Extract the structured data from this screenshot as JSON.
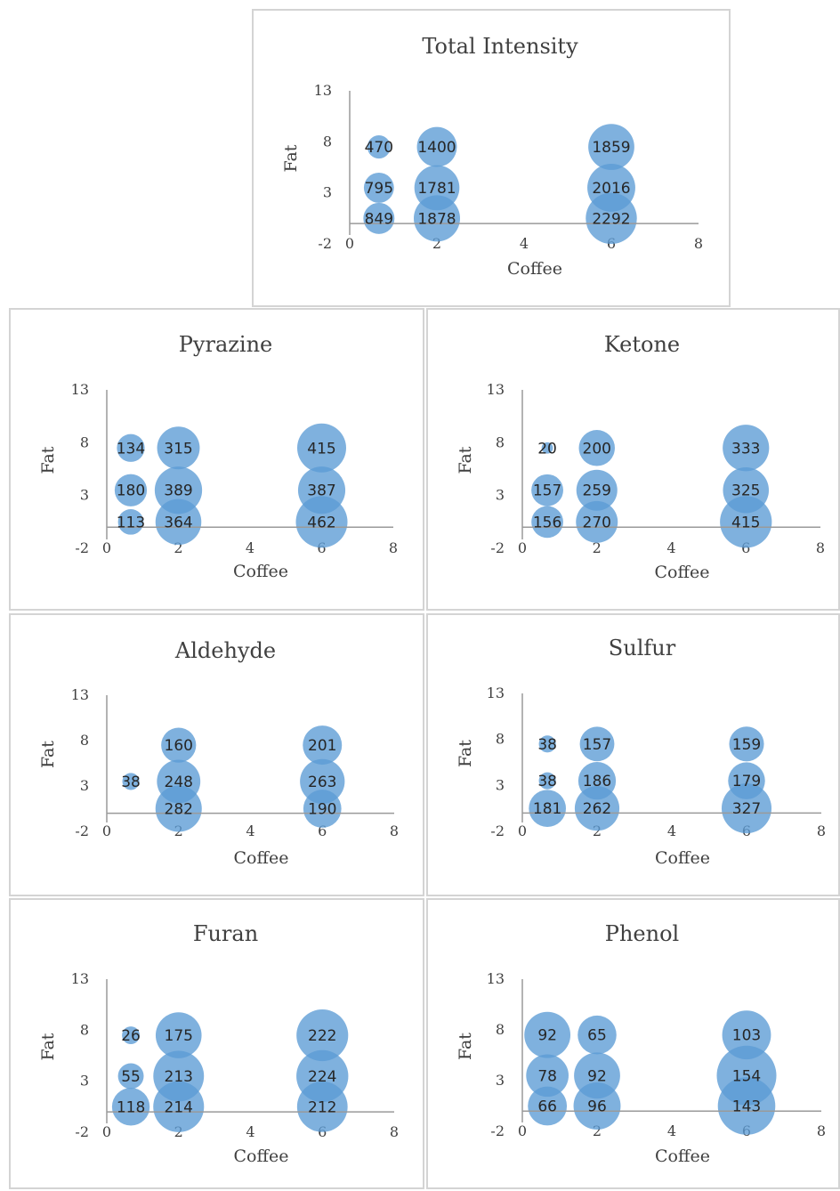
{
  "chart_data": [
    {
      "type": "bubble",
      "title": "Total Intensity",
      "xlabel": "Coffee",
      "ylabel": "Fat",
      "xlim": [
        0,
        8
      ],
      "ylim": [
        -2,
        13
      ],
      "xticks": [
        0,
        2,
        4,
        6,
        8
      ],
      "yticks": [
        -2,
        3,
        8,
        13
      ],
      "color": "#5b9bd5",
      "points": [
        {
          "x": 0.67,
          "y": 7.5,
          "value": 470
        },
        {
          "x": 0.67,
          "y": 3.5,
          "value": 795
        },
        {
          "x": 0.67,
          "y": 0.5,
          "value": 849
        },
        {
          "x": 2,
          "y": 7.5,
          "value": 1400
        },
        {
          "x": 2,
          "y": 3.5,
          "value": 1781
        },
        {
          "x": 2,
          "y": 0.5,
          "value": 1878
        },
        {
          "x": 6,
          "y": 7.5,
          "value": 1859
        },
        {
          "x": 6,
          "y": 3.5,
          "value": 2016
        },
        {
          "x": 6,
          "y": 0.5,
          "value": 2292
        }
      ]
    },
    {
      "type": "bubble",
      "title": "Pyrazine",
      "xlabel": "Coffee",
      "ylabel": "Fat",
      "xlim": [
        0,
        8
      ],
      "ylim": [
        -2,
        13
      ],
      "xticks": [
        0,
        2,
        4,
        6,
        8
      ],
      "yticks": [
        -2,
        3,
        8,
        13
      ],
      "color": "#5b9bd5",
      "points": [
        {
          "x": 0.67,
          "y": 7.5,
          "value": 134
        },
        {
          "x": 0.67,
          "y": 3.5,
          "value": 180
        },
        {
          "x": 0.67,
          "y": 0.5,
          "value": 113
        },
        {
          "x": 2,
          "y": 7.5,
          "value": 315
        },
        {
          "x": 2,
          "y": 3.5,
          "value": 389
        },
        {
          "x": 2,
          "y": 0.5,
          "value": 364
        },
        {
          "x": 6,
          "y": 7.5,
          "value": 415
        },
        {
          "x": 6,
          "y": 3.5,
          "value": 387
        },
        {
          "x": 6,
          "y": 0.5,
          "value": 462
        }
      ]
    },
    {
      "type": "bubble",
      "title": "Ketone",
      "xlabel": "Coffee",
      "ylabel": "Fat",
      "xlim": [
        0,
        8
      ],
      "ylim": [
        -2,
        13
      ],
      "xticks": [
        0,
        2,
        4,
        6,
        8
      ],
      "yticks": [
        -2,
        3,
        8,
        13
      ],
      "color": "#5b9bd5",
      "points": [
        {
          "x": 0.67,
          "y": 7.5,
          "value": 20
        },
        {
          "x": 0.67,
          "y": 3.5,
          "value": 157
        },
        {
          "x": 0.67,
          "y": 0.5,
          "value": 156
        },
        {
          "x": 2,
          "y": 7.5,
          "value": 200
        },
        {
          "x": 2,
          "y": 3.5,
          "value": 259
        },
        {
          "x": 2,
          "y": 0.5,
          "value": 270
        },
        {
          "x": 6,
          "y": 7.5,
          "value": 333
        },
        {
          "x": 6,
          "y": 3.5,
          "value": 325
        },
        {
          "x": 6,
          "y": 0.5,
          "value": 415
        }
      ]
    },
    {
      "type": "bubble",
      "title": "Aldehyde",
      "xlabel": "Coffee",
      "ylabel": "Fat",
      "xlim": [
        0,
        8
      ],
      "ylim": [
        -2,
        13
      ],
      "xticks": [
        0,
        2,
        4,
        6,
        8
      ],
      "yticks": [
        -2,
        3,
        8,
        13
      ],
      "color": "#5b9bd5",
      "points": [
        {
          "x": 0.67,
          "y": 3.5,
          "value": 38
        },
        {
          "x": 2,
          "y": 7.5,
          "value": 160
        },
        {
          "x": 2,
          "y": 3.5,
          "value": 248
        },
        {
          "x": 2,
          "y": 0.5,
          "value": 282
        },
        {
          "x": 6,
          "y": 7.5,
          "value": 201
        },
        {
          "x": 6,
          "y": 3.5,
          "value": 263
        },
        {
          "x": 6,
          "y": 0.5,
          "value": 190
        }
      ]
    },
    {
      "type": "bubble",
      "title": "Sulfur",
      "xlabel": "Coffee",
      "ylabel": "Fat",
      "xlim": [
        0,
        8
      ],
      "ylim": [
        -2,
        13
      ],
      "xticks": [
        0,
        2,
        4,
        6,
        8
      ],
      "yticks": [
        -2,
        3,
        8,
        13
      ],
      "color": "#5b9bd5",
      "points": [
        {
          "x": 0.67,
          "y": 7.5,
          "value": 38
        },
        {
          "x": 0.67,
          "y": 3.5,
          "value": 38
        },
        {
          "x": 0.67,
          "y": 0.5,
          "value": 181
        },
        {
          "x": 2,
          "y": 7.5,
          "value": 157
        },
        {
          "x": 2,
          "y": 3.5,
          "value": 186
        },
        {
          "x": 2,
          "y": 0.5,
          "value": 262
        },
        {
          "x": 6,
          "y": 7.5,
          "value": 159
        },
        {
          "x": 6,
          "y": 3.5,
          "value": 179
        },
        {
          "x": 6,
          "y": 0.5,
          "value": 327
        }
      ]
    },
    {
      "type": "bubble",
      "title": "Furan",
      "xlabel": "Coffee",
      "ylabel": "Fat",
      "xlim": [
        0,
        8
      ],
      "ylim": [
        -2,
        13
      ],
      "xticks": [
        0,
        2,
        4,
        6,
        8
      ],
      "yticks": [
        -2,
        3,
        8,
        13
      ],
      "color": "#5b9bd5",
      "points": [
        {
          "x": 0.67,
          "y": 7.5,
          "value": 26
        },
        {
          "x": 0.67,
          "y": 3.5,
          "value": 55
        },
        {
          "x": 0.67,
          "y": 0.5,
          "value": 118
        },
        {
          "x": 2,
          "y": 7.5,
          "value": 175
        },
        {
          "x": 2,
          "y": 3.5,
          "value": 213
        },
        {
          "x": 2,
          "y": 0.5,
          "value": 214
        },
        {
          "x": 6,
          "y": 7.5,
          "value": 222
        },
        {
          "x": 6,
          "y": 3.5,
          "value": 224
        },
        {
          "x": 6,
          "y": 0.5,
          "value": 212
        }
      ]
    },
    {
      "type": "bubble",
      "title": "Phenol",
      "xlabel": "Coffee",
      "ylabel": "Fat",
      "xlim": [
        0,
        8
      ],
      "ylim": [
        -2,
        13
      ],
      "xticks": [
        0,
        2,
        4,
        6,
        8
      ],
      "yticks": [
        -2,
        3,
        8,
        13
      ],
      "color": "#5b9bd5",
      "points": [
        {
          "x": 0.67,
          "y": 7.5,
          "value": 92
        },
        {
          "x": 0.67,
          "y": 3.5,
          "value": 78
        },
        {
          "x": 0.67,
          "y": 0.5,
          "value": 66
        },
        {
          "x": 2,
          "y": 7.5,
          "value": 65
        },
        {
          "x": 2,
          "y": 3.5,
          "value": 92
        },
        {
          "x": 2,
          "y": 0.5,
          "value": 96
        },
        {
          "x": 6,
          "y": 7.5,
          "value": 103
        },
        {
          "x": 6,
          "y": 3.5,
          "value": 154
        },
        {
          "x": 6,
          "y": 0.5,
          "value": 143
        }
      ]
    }
  ]
}
